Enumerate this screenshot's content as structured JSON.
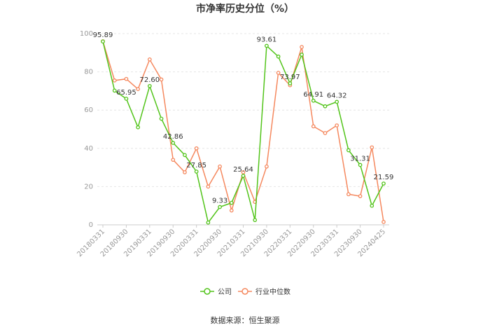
{
  "chart_data": {
    "type": "line",
    "title": "市净率历史分位（%）",
    "source": "数据来源：恒生聚源",
    "ylim": [
      0,
      100
    ],
    "yticks": [
      0,
      20,
      40,
      60,
      80,
      100
    ],
    "x": [
      "2018-03-31",
      "2018-06-30",
      "2018-09-30",
      "2018-12-31",
      "2019-03-31",
      "2019-06-30",
      "2019-09-30",
      "2019-12-31",
      "2020-03-31",
      "2020-06-30",
      "2020-09-30",
      "2020-12-31",
      "2021-03-31",
      "2021-06-30",
      "2021-09-30",
      "2021-12-31",
      "2022-03-31",
      "2022-06-30",
      "2022-09-30",
      "2022-12-31",
      "2023-03-31",
      "2023-06-30",
      "2023-09-30",
      "2023-12-31",
      "2024-04-25"
    ],
    "xtick_labels": [
      "20180331",
      "20180930",
      "20190331",
      "20190930",
      "20200331",
      "20200930",
      "20210331",
      "20210930",
      "20220331",
      "20220930",
      "20230331",
      "20230930",
      "20240425"
    ],
    "xtick_index": [
      0,
      2,
      4,
      6,
      8,
      10,
      12,
      14,
      16,
      18,
      20,
      22,
      24
    ],
    "grid": true,
    "legend": "bottom-center",
    "series": [
      {
        "name": "公司",
        "color": "#52c41a",
        "values": [
          95.89,
          70.2,
          65.95,
          51.0,
          72.6,
          55.5,
          42.86,
          36.5,
          27.85,
          1.2,
          9.33,
          11.5,
          25.64,
          2.5,
          93.61,
          88.0,
          73.97,
          89.0,
          64.91,
          62.0,
          64.32,
          39.0,
          31.31,
          10.0,
          21.59
        ],
        "labels": {
          "0": "95.89",
          "2": "65.95",
          "4": "72.60",
          "6": "42.86",
          "8": "27.85",
          "10": "9.33",
          "12": "25.64",
          "14": "93.61",
          "16": "73.97",
          "18": "64.91",
          "20": "64.32",
          "22": "31.31",
          "24": "21.59"
        }
      },
      {
        "name": "行业中位数",
        "color": "#f5885e",
        "values": [
          96.0,
          75.5,
          76.3,
          71.0,
          86.5,
          76.0,
          34.0,
          27.5,
          40.0,
          20.0,
          30.5,
          7.5,
          27.5,
          12.0,
          30.5,
          79.5,
          73.0,
          93.0,
          51.5,
          48.0,
          52.0,
          16.0,
          15.0,
          40.5,
          1.5
        ]
      }
    ]
  }
}
